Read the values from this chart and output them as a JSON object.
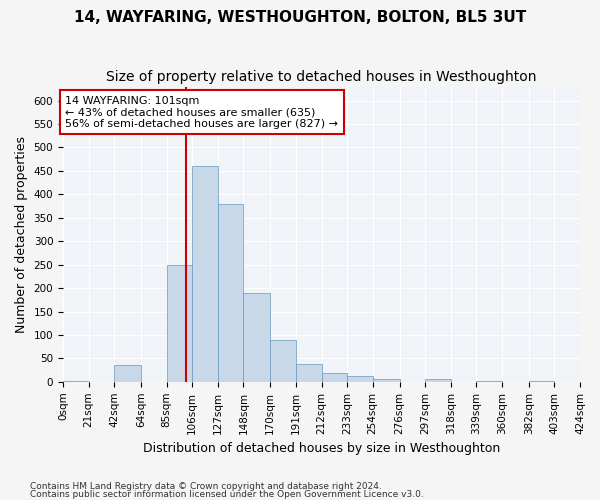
{
  "title": "14, WAYFARING, WESTHOUGHTON, BOLTON, BL5 3UT",
  "subtitle": "Size of property relative to detached houses in Westhoughton",
  "xlabel": "Distribution of detached houses by size in Westhoughton",
  "ylabel": "Number of detached properties",
  "bar_color": "#c8d8e8",
  "bar_edge_color": "#6699bb",
  "background_color": "#f0f4f8",
  "grid_color": "#ffffff",
  "bin_edges": [
    0,
    21,
    42,
    64,
    85,
    106,
    127,
    148,
    170,
    191,
    212,
    233,
    254,
    276,
    297,
    318,
    339,
    360,
    382,
    403,
    424
  ],
  "bin_labels": [
    "0sqm",
    "21sqm",
    "42sqm",
    "64sqm",
    "85sqm",
    "106sqm",
    "127sqm",
    "148sqm",
    "170sqm",
    "191sqm",
    "212sqm",
    "233sqm",
    "254sqm",
    "276sqm",
    "297sqm",
    "318sqm",
    "339sqm",
    "360sqm",
    "382sqm",
    "403sqm",
    "424sqm"
  ],
  "bar_heights": [
    2,
    0,
    35,
    0,
    250,
    460,
    380,
    190,
    90,
    37,
    18,
    12,
    5,
    0,
    7,
    0,
    2,
    0,
    2,
    0
  ],
  "property_size": 101,
  "vline_color": "#cc0000",
  "annotation_text": "14 WAYFARING: 101sqm\n← 43% of detached houses are smaller (635)\n56% of semi-detached houses are larger (827) →",
  "annotation_box_color": "#ffffff",
  "annotation_box_edge": "#cc0000",
  "ylim": [
    0,
    630
  ],
  "yticks": [
    0,
    50,
    100,
    150,
    200,
    250,
    300,
    350,
    400,
    450,
    500,
    550,
    600
  ],
  "footer1": "Contains HM Land Registry data © Crown copyright and database right 2024.",
  "footer2": "Contains public sector information licensed under the Open Government Licence v3.0.",
  "title_fontsize": 11,
  "subtitle_fontsize": 10,
  "axis_label_fontsize": 9,
  "tick_fontsize": 7.5,
  "annotation_fontsize": 8
}
